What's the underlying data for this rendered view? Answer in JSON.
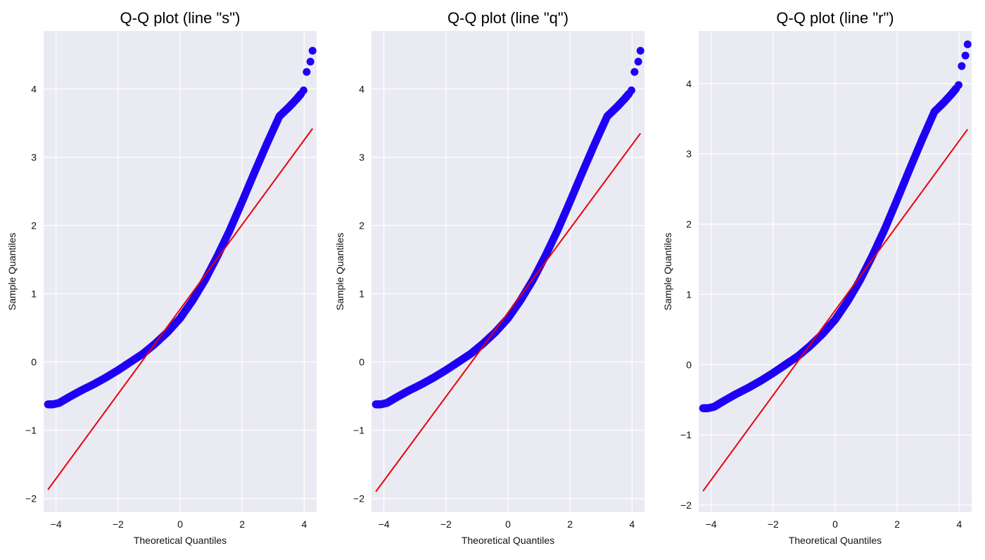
{
  "colors": {
    "background": "#ffffff",
    "plot_area": "#eaeaf2",
    "grid": "#ffffff",
    "points": "#1f00f5",
    "reference_line": "#e8000b"
  },
  "chart_data": [
    {
      "type": "scatter",
      "title": "Q-Q plot (line \"s\")",
      "xlabel": "Theoretical Quantiles",
      "ylabel": "Sample Quantiles",
      "xlim": [
        -4.4,
        4.4
      ],
      "ylim": [
        -2.2,
        4.85
      ],
      "xticks": [
        -4,
        -2,
        0,
        2,
        4
      ],
      "yticks": [
        -2,
        -1,
        0,
        1,
        2,
        3,
        4
      ],
      "xtick_labels": [
        "−4",
        "−2",
        "0",
        "2",
        "4"
      ],
      "ytick_labels": [
        "−2",
        "−1",
        "0",
        "1",
        "2",
        "3",
        "4"
      ],
      "grid": true,
      "series": [
        {
          "kind": "points",
          "x": [
            -4.26,
            -4.1,
            -3.9,
            -3.6,
            -3.2,
            -2.8,
            -2.4,
            -2.0,
            -1.6,
            -1.2,
            -0.8,
            -0.4,
            0.0,
            0.4,
            0.8,
            1.2,
            1.6,
            2.0,
            2.4,
            2.8,
            3.2,
            3.5,
            3.75,
            3.9,
            3.98,
            4.08,
            4.2,
            4.27
          ],
          "y": [
            -0.62,
            -0.62,
            -0.6,
            -0.52,
            -0.42,
            -0.33,
            -0.23,
            -0.12,
            0.0,
            0.12,
            0.27,
            0.44,
            0.64,
            0.9,
            1.2,
            1.55,
            1.93,
            2.35,
            2.78,
            3.2,
            3.6,
            3.73,
            3.85,
            3.93,
            3.98,
            4.25,
            4.4,
            4.56
          ]
        },
        {
          "kind": "line",
          "x": [
            -4.26,
            4.27
          ],
          "y": [
            -1.87,
            3.42
          ]
        }
      ]
    },
    {
      "type": "scatter",
      "title": "Q-Q plot (line \"q\")",
      "xlabel": "Theoretical Quantiles",
      "ylabel": "Sample Quantiles",
      "xlim": [
        -4.4,
        4.4
      ],
      "ylim": [
        -2.2,
        4.85
      ],
      "xticks": [
        -4,
        -2,
        0,
        2,
        4
      ],
      "yticks": [
        -2,
        -1,
        0,
        1,
        2,
        3,
        4
      ],
      "xtick_labels": [
        "−4",
        "−2",
        "0",
        "2",
        "4"
      ],
      "ytick_labels": [
        "−2",
        "−1",
        "0",
        "1",
        "2",
        "3",
        "4"
      ],
      "grid": true,
      "series": [
        {
          "kind": "points",
          "x": [
            -4.26,
            -4.1,
            -3.9,
            -3.6,
            -3.2,
            -2.8,
            -2.4,
            -2.0,
            -1.6,
            -1.2,
            -0.8,
            -0.4,
            0.0,
            0.4,
            0.8,
            1.2,
            1.6,
            2.0,
            2.4,
            2.8,
            3.2,
            3.5,
            3.75,
            3.9,
            3.98,
            4.08,
            4.2,
            4.27
          ],
          "y": [
            -0.62,
            -0.62,
            -0.6,
            -0.52,
            -0.42,
            -0.33,
            -0.23,
            -0.12,
            0.0,
            0.12,
            0.27,
            0.44,
            0.64,
            0.9,
            1.2,
            1.55,
            1.93,
            2.35,
            2.78,
            3.2,
            3.6,
            3.73,
            3.85,
            3.93,
            3.98,
            4.25,
            4.4,
            4.56
          ]
        },
        {
          "kind": "line",
          "x": [
            -4.26,
            4.27
          ],
          "y": [
            -1.9,
            3.35
          ]
        }
      ]
    },
    {
      "type": "scatter",
      "title": "Q-Q plot (line \"r\")",
      "xlabel": "Theoretical Quantiles",
      "ylabel": "Sample Quantiles",
      "xlim": [
        -4.4,
        4.4
      ],
      "ylim": [
        -2.1,
        4.75
      ],
      "xticks": [
        -4,
        -2,
        0,
        2,
        4
      ],
      "yticks": [
        -2,
        -1,
        0,
        1,
        2,
        3,
        4
      ],
      "xtick_labels": [
        "−4",
        "−2",
        "0",
        "2",
        "4"
      ],
      "ytick_labels": [
        "−2",
        "−1",
        "0",
        "1",
        "2",
        "3",
        "4"
      ],
      "grid": true,
      "series": [
        {
          "kind": "points",
          "x": [
            -4.26,
            -4.1,
            -3.9,
            -3.6,
            -3.2,
            -2.8,
            -2.4,
            -2.0,
            -1.6,
            -1.2,
            -0.8,
            -0.4,
            0.0,
            0.4,
            0.8,
            1.2,
            1.6,
            2.0,
            2.4,
            2.8,
            3.2,
            3.5,
            3.75,
            3.9,
            3.98,
            4.08,
            4.2,
            4.27
          ],
          "y": [
            -0.62,
            -0.62,
            -0.6,
            -0.52,
            -0.42,
            -0.33,
            -0.23,
            -0.12,
            0.0,
            0.12,
            0.27,
            0.44,
            0.64,
            0.9,
            1.2,
            1.55,
            1.93,
            2.35,
            2.78,
            3.2,
            3.6,
            3.73,
            3.85,
            3.93,
            3.98,
            4.25,
            4.4,
            4.56
          ]
        },
        {
          "kind": "line",
          "x": [
            -4.26,
            4.27
          ],
          "y": [
            -1.8,
            3.35
          ]
        }
      ]
    }
  ]
}
